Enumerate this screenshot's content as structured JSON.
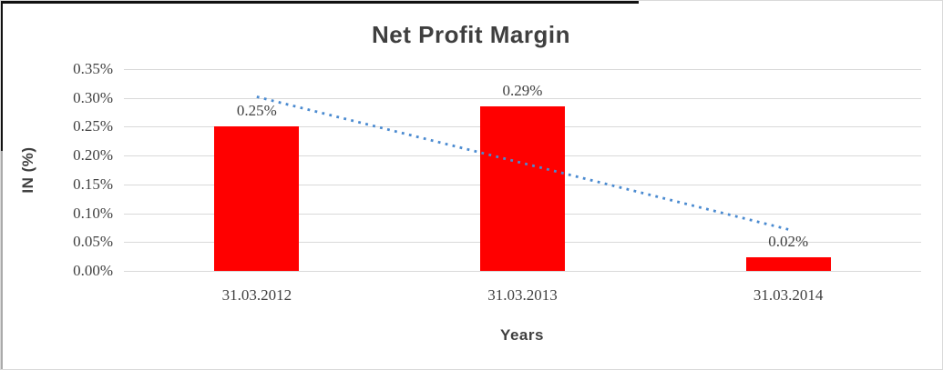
{
  "chart_data": {
    "type": "bar",
    "title": "Net Profit Margin",
    "xlabel": "Years",
    "ylabel": "IN (%)",
    "categories": [
      "31.03.2012",
      "31.03.2013",
      "31.03.2014"
    ],
    "values": [
      0.25,
      0.285,
      0.023
    ],
    "data_labels": [
      "0.25%",
      "0.29%",
      "0.02%"
    ],
    "ylim": [
      0,
      0.35
    ],
    "ytick_step": 0.05,
    "ytick_labels": [
      "0.00%",
      "0.05%",
      "0.10%",
      "0.15%",
      "0.20%",
      "0.25%",
      "0.30%",
      "0.35%"
    ],
    "grid": true,
    "legend": false,
    "bar_color": "#ff0000",
    "trendline": {
      "style": "dotted",
      "color": "#4a8ad0",
      "start_value": 0.302,
      "end_value": 0.072
    },
    "gridline_color": "#d9d9d9",
    "text_color": "#404040"
  }
}
